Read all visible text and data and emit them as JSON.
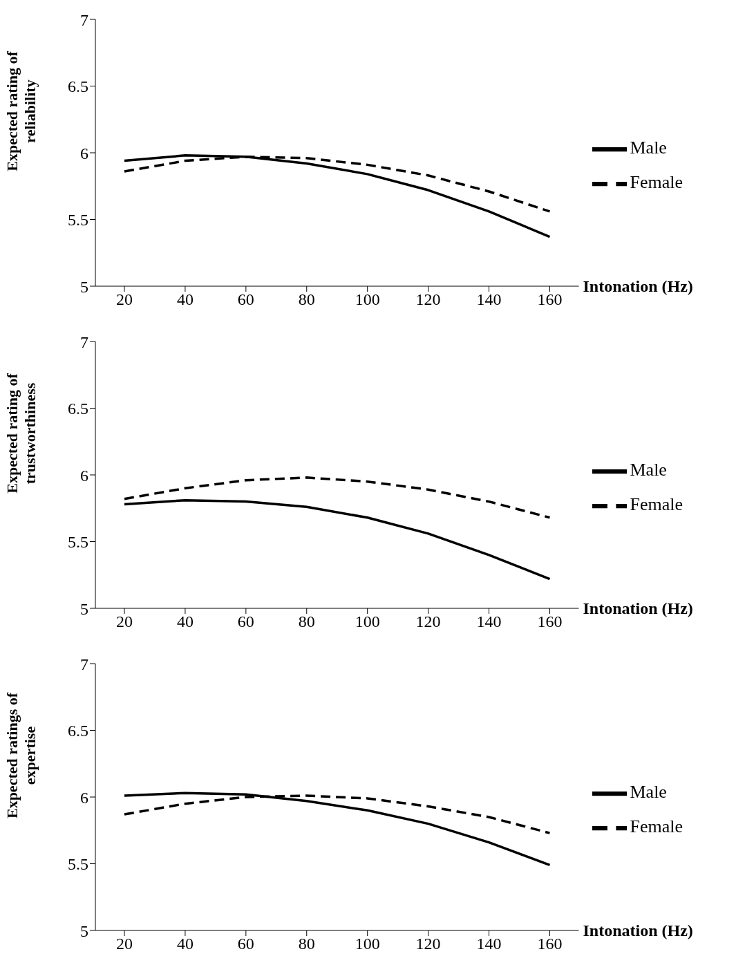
{
  "chart_data": [
    {
      "type": "line",
      "ylabel": "Expected rating of reliability",
      "xlabel": "Intonation (Hz)",
      "categories": [
        "20",
        "40",
        "60",
        "80",
        "100",
        "120",
        "140",
        "160"
      ],
      "ylim": [
        5,
        7
      ],
      "yticks": [
        5,
        5.5,
        6,
        6.5,
        7
      ],
      "grid": false,
      "legend": "right",
      "series": [
        {
          "name": "Male",
          "color": "#000000",
          "line_style": "solid",
          "values": [
            5.94,
            5.98,
            5.97,
            5.92,
            5.84,
            5.72,
            5.56,
            5.37
          ]
        },
        {
          "name": "Female",
          "color": "#000000",
          "line_style": "dashed",
          "values": [
            5.86,
            5.94,
            5.97,
            5.96,
            5.91,
            5.83,
            5.71,
            5.56
          ]
        }
      ]
    },
    {
      "type": "line",
      "ylabel": "Expected rating of trustworthiness",
      "xlabel": "Intonation (Hz)",
      "categories": [
        "20",
        "40",
        "60",
        "80",
        "100",
        "120",
        "140",
        "160"
      ],
      "ylim": [
        5,
        7
      ],
      "yticks": [
        5,
        5.5,
        6,
        6.5,
        7
      ],
      "grid": false,
      "legend": "right",
      "series": [
        {
          "name": "Male",
          "color": "#000000",
          "line_style": "solid",
          "values": [
            5.78,
            5.81,
            5.8,
            5.76,
            5.68,
            5.56,
            5.4,
            5.22
          ]
        },
        {
          "name": "Female",
          "color": "#000000",
          "line_style": "dashed",
          "values": [
            5.82,
            5.9,
            5.96,
            5.98,
            5.95,
            5.89,
            5.8,
            5.68
          ]
        }
      ]
    },
    {
      "type": "line",
      "ylabel": "Expected ratings of expertise",
      "xlabel": "Intonation (Hz)",
      "categories": [
        "20",
        "40",
        "60",
        "80",
        "100",
        "120",
        "140",
        "160"
      ],
      "ylim": [
        5,
        7
      ],
      "yticks": [
        5,
        5.5,
        6,
        6.5,
        7
      ],
      "grid": false,
      "legend": "right",
      "series": [
        {
          "name": "Male",
          "color": "#000000",
          "line_style": "solid",
          "values": [
            6.01,
            6.03,
            6.02,
            5.97,
            5.9,
            5.8,
            5.66,
            5.49
          ]
        },
        {
          "name": "Female",
          "color": "#000000",
          "line_style": "dashed",
          "values": [
            5.87,
            5.95,
            6.0,
            6.01,
            5.99,
            5.93,
            5.85,
            5.73
          ]
        }
      ]
    }
  ]
}
